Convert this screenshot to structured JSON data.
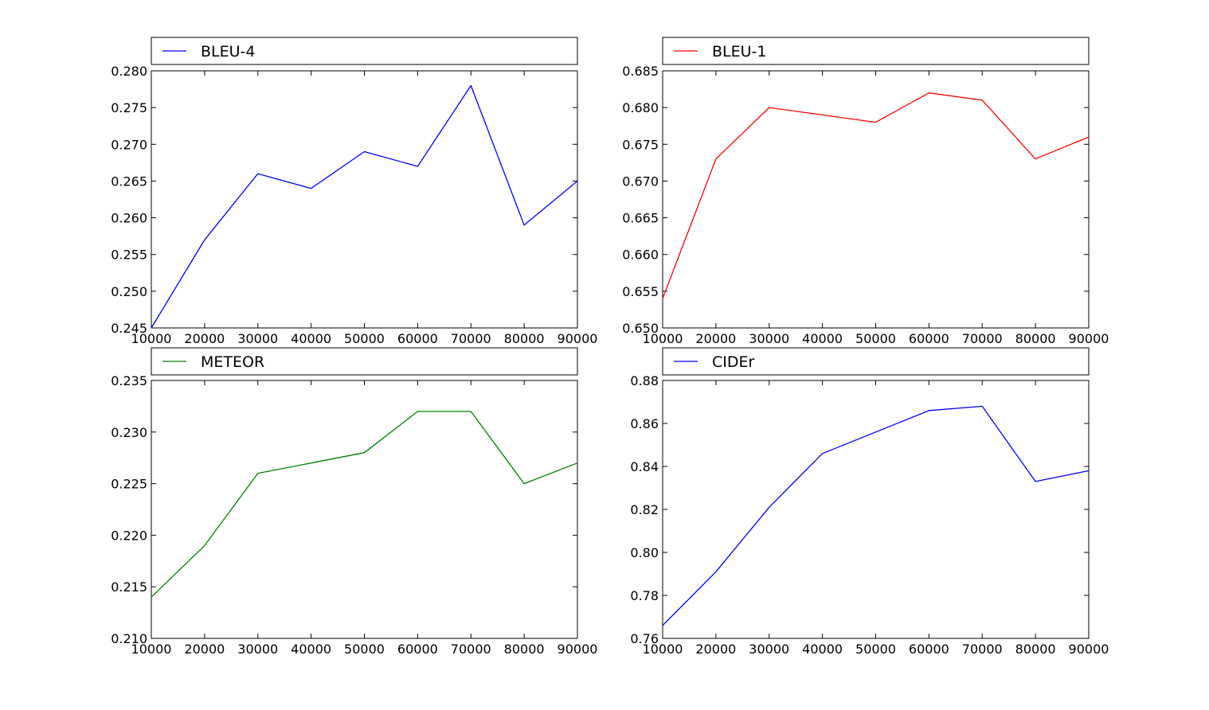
{
  "chart_data": [
    {
      "type": "line",
      "x": [
        10000,
        20000,
        30000,
        40000,
        50000,
        60000,
        70000,
        80000,
        90000
      ],
      "series": [
        {
          "name": "BLEU-4",
          "color": "#0000ff",
          "values": [
            0.245,
            0.257,
            0.266,
            0.264,
            0.269,
            0.267,
            0.278,
            0.259,
            0.265
          ]
        }
      ],
      "xlim": [
        10000,
        90000
      ],
      "ylim": [
        0.245,
        0.28
      ],
      "xticks": [
        "10000",
        "20000",
        "30000",
        "40000",
        "50000",
        "60000",
        "70000",
        "80000",
        "90000"
      ],
      "yticks": [
        "0.245",
        "0.250",
        "0.255",
        "0.260",
        "0.265",
        "0.270",
        "0.275",
        "0.280"
      ],
      "grid": false,
      "legend": "top"
    },
    {
      "type": "line",
      "x": [
        10000,
        20000,
        30000,
        40000,
        50000,
        60000,
        70000,
        80000,
        90000
      ],
      "series": [
        {
          "name": "BLEU-1",
          "color": "#ff0000",
          "values": [
            0.654,
            0.673,
            0.68,
            0.679,
            0.678,
            0.682,
            0.681,
            0.673,
            0.676
          ]
        }
      ],
      "xlim": [
        10000,
        90000
      ],
      "ylim": [
        0.65,
        0.685
      ],
      "xticks": [
        "10000",
        "20000",
        "30000",
        "40000",
        "50000",
        "60000",
        "70000",
        "80000",
        "90000"
      ],
      "yticks": [
        "0.650",
        "0.655",
        "0.660",
        "0.665",
        "0.670",
        "0.675",
        "0.680",
        "0.685"
      ],
      "grid": false,
      "legend": "top"
    },
    {
      "type": "line",
      "x": [
        10000,
        20000,
        30000,
        40000,
        50000,
        60000,
        70000,
        80000,
        90000
      ],
      "series": [
        {
          "name": "METEOR",
          "color": "#008000",
          "values": [
            0.214,
            0.219,
            0.226,
            0.227,
            0.228,
            0.232,
            0.232,
            0.225,
            0.227
          ]
        }
      ],
      "xlim": [
        10000,
        90000
      ],
      "ylim": [
        0.21,
        0.235
      ],
      "xticks": [
        "10000",
        "20000",
        "30000",
        "40000",
        "50000",
        "60000",
        "70000",
        "80000",
        "90000"
      ],
      "yticks": [
        "0.210",
        "0.215",
        "0.220",
        "0.225",
        "0.230",
        "0.235"
      ],
      "grid": false,
      "legend": "top"
    },
    {
      "type": "line",
      "x": [
        10000,
        20000,
        30000,
        40000,
        50000,
        60000,
        70000,
        80000,
        90000
      ],
      "series": [
        {
          "name": "CIDEr",
          "color": "#0000ff",
          "values": [
            0.766,
            0.791,
            0.821,
            0.846,
            0.856,
            0.866,
            0.868,
            0.833,
            0.838
          ]
        }
      ],
      "xlim": [
        10000,
        90000
      ],
      "ylim": [
        0.76,
        0.88
      ],
      "xticks": [
        "10000",
        "20000",
        "30000",
        "40000",
        "50000",
        "60000",
        "70000",
        "80000",
        "90000"
      ],
      "yticks": [
        "0.76",
        "0.78",
        "0.80",
        "0.82",
        "0.84",
        "0.86",
        "0.88"
      ],
      "grid": false,
      "legend": "top"
    }
  ]
}
